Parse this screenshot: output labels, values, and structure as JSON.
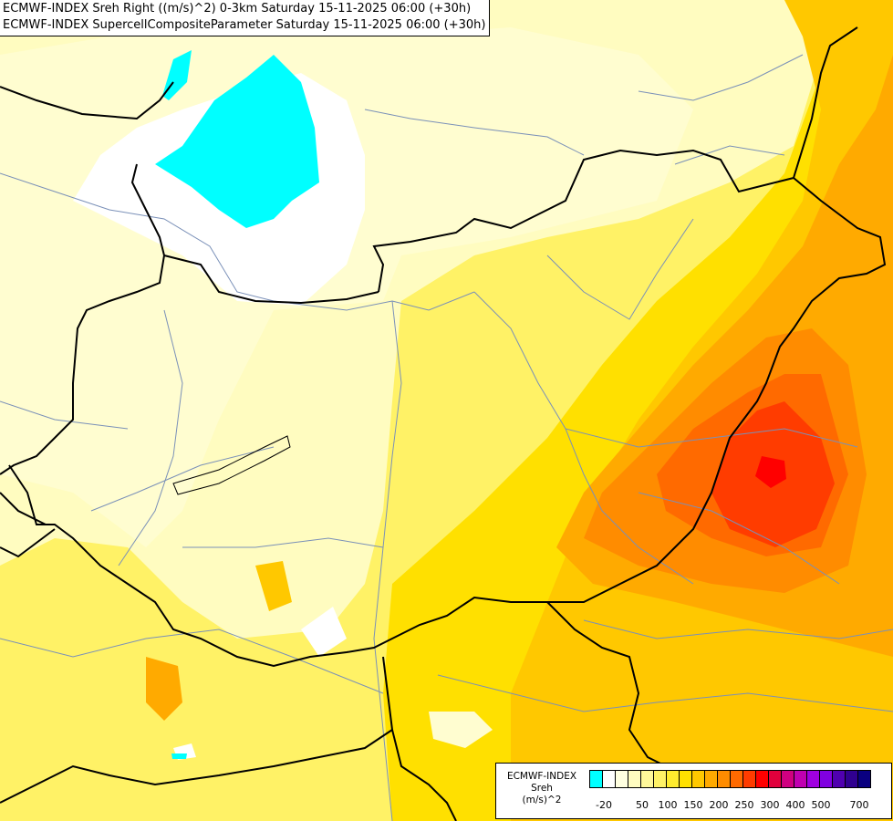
{
  "titles": {
    "line1": "ECMWF-INDEX Sreh Right ((m/s)^2) 0-3km Saturday 15-11-2025 06:00 (+30h)",
    "line2": "ECMWF-INDEX SupercellCompositeParameter Saturday 15-11-2025 06:00 (+30h)"
  },
  "legend": {
    "label_line1": "ECMWF-INDEX",
    "label_line2": "Sreh",
    "label_line3": "(m/s)^2",
    "colors": [
      "#00ffff",
      "#ffffff",
      "#ffffe0",
      "#fffcc0",
      "#fff89a",
      "#fff266",
      "#ffec2e",
      "#ffe000",
      "#ffc800",
      "#ffaa00",
      "#ff8c00",
      "#ff6a00",
      "#ff3c00",
      "#ff0000",
      "#e0003c",
      "#d00080",
      "#c000b0",
      "#a000e0",
      "#8000e0",
      "#5000b0",
      "#300090",
      "#0a0080"
    ],
    "ticks": [
      "-20",
      "50",
      "100",
      "150",
      "200",
      "250",
      "300",
      "400",
      "500",
      "700"
    ]
  }
}
